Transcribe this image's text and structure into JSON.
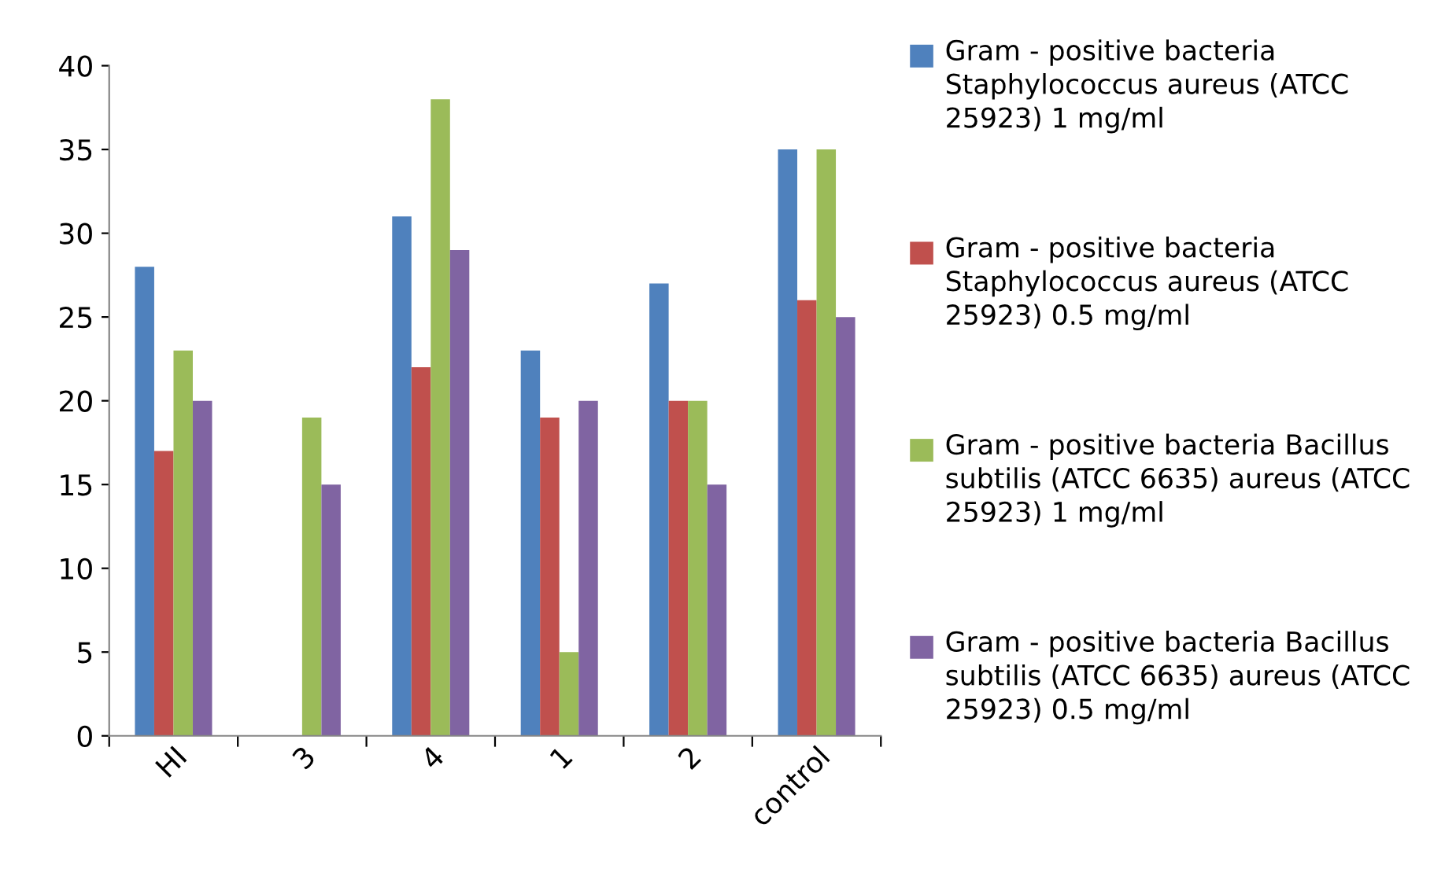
{
  "chart_data": {
    "type": "bar",
    "categories": [
      "HI",
      "3",
      "4",
      "1",
      "2",
      "control"
    ],
    "series": [
      {
        "name": "Gram - positive bacteria Staphylococcus aureus (ATCC 25923) 1 mg/ml",
        "color": "#4f81bd",
        "values": [
          28,
          null,
          31,
          23,
          27,
          35
        ]
      },
      {
        "name": "Gram - positive bacteria Staphylococcus aureus (ATCC 25923) 0.5 mg/ml",
        "color": "#c0504d",
        "values": [
          17,
          null,
          22,
          19,
          20,
          26
        ]
      },
      {
        "name": "Gram - positive bacteria Bacillus subtilis (ATCC 6635) aureus (ATCC 25923) 1 mg/ml",
        "color": "#9bbb59",
        "values": [
          23,
          19,
          38,
          5,
          20,
          35
        ]
      },
      {
        "name": "Gram - positive bacteria Bacillus subtilis (ATCC 6635) aureus (ATCC 25923) 0.5 mg/ml",
        "color": "#8064a2",
        "values": [
          20,
          15,
          29,
          20,
          15,
          25
        ]
      }
    ],
    "ylim": [
      0,
      40
    ],
    "yticks": [
      0,
      5,
      10,
      15,
      20,
      25,
      30,
      35,
      40
    ],
    "grid": false,
    "legend": "right"
  }
}
